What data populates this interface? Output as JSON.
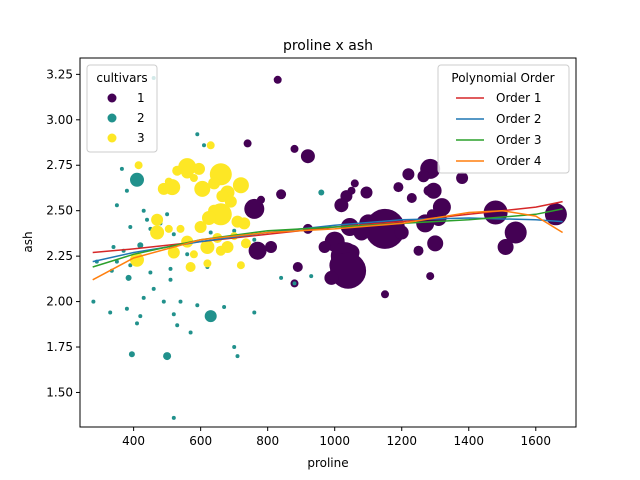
{
  "chart_data": {
    "type": "scatter",
    "title": "proline x ash",
    "xlabel": "proline",
    "ylabel": "ash",
    "xlim": [
      240,
      1720
    ],
    "ylim": [
      1.31,
      3.34
    ],
    "xticks": [
      400,
      600,
      800,
      1000,
      1200,
      1400,
      1600
    ],
    "yticks": [
      1.5,
      1.75,
      2.0,
      2.25,
      2.5,
      2.75,
      3.0,
      3.25
    ],
    "ytick_labels": [
      "1.50",
      "1.75",
      "2.00",
      "2.25",
      "2.50",
      "2.75",
      "3.00",
      "3.25"
    ],
    "grid": false,
    "legends": [
      {
        "title": "cultivars",
        "placement": "top-left",
        "entries": [
          {
            "label": "1",
            "color": "#440154"
          },
          {
            "label": "2",
            "color": "#21918c"
          },
          {
            "label": "3",
            "color": "#fde725"
          }
        ]
      },
      {
        "title": "Polynomial Order",
        "placement": "top-right",
        "entries": [
          {
            "label": "Order 1",
            "color": "#d62728"
          },
          {
            "label": "Order 2",
            "color": "#1f77b4"
          },
          {
            "label": "Order 3",
            "color": "#2ca02c"
          },
          {
            "label": "Order 4",
            "color": "#ff7f0e"
          }
        ]
      }
    ],
    "scatter": [
      {
        "cultivar": "1",
        "color": "#440154",
        "points": [
          [
            830,
            3.22
          ],
          [
            740,
            2.87
          ],
          [
            880,
            2.84
          ],
          [
            920,
            2.8
          ],
          [
            1285,
            2.73
          ],
          [
            1265,
            2.69
          ],
          [
            1220,
            2.7
          ],
          [
            1380,
            2.68
          ],
          [
            1060,
            2.65
          ],
          [
            1050,
            2.61
          ],
          [
            1190,
            2.63
          ],
          [
            1280,
            2.61
          ],
          [
            1295,
            2.61
          ],
          [
            1095,
            2.6
          ],
          [
            840,
            2.59
          ],
          [
            1035,
            2.58
          ],
          [
            1230,
            2.57
          ],
          [
            780,
            2.56
          ],
          [
            1020,
            2.53
          ],
          [
            1320,
            2.52
          ],
          [
            760,
            2.51
          ],
          [
            1290,
            2.48
          ],
          [
            1480,
            2.49
          ],
          [
            1660,
            2.48
          ],
          [
            1310,
            2.46
          ],
          [
            1270,
            2.43
          ],
          [
            1100,
            2.43
          ],
          [
            1045,
            2.41
          ],
          [
            1150,
            2.4
          ],
          [
            1540,
            2.38
          ],
          [
            920,
            2.4
          ],
          [
            1080,
            2.38
          ],
          [
            1200,
            2.38
          ],
          [
            1300,
            2.32
          ],
          [
            1000,
            2.33
          ],
          [
            970,
            2.3
          ],
          [
            1510,
            2.3
          ],
          [
            770,
            2.28
          ],
          [
            810,
            2.3
          ],
          [
            1050,
            2.27
          ],
          [
            1250,
            2.28
          ],
          [
            1030,
            2.25
          ],
          [
            1020,
            2.2
          ],
          [
            1040,
            2.17
          ],
          [
            890,
            2.19
          ],
          [
            1285,
            2.14
          ],
          [
            990,
            2.13
          ],
          [
            880,
            2.1
          ],
          [
            1150,
            2.04
          ]
        ],
        "sizes": [
          4,
          4,
          4,
          7,
          10,
          6,
          6,
          6,
          4,
          4,
          5,
          5,
          8,
          6,
          5,
          6,
          5,
          4,
          7,
          9,
          10,
          5,
          12,
          11,
          8,
          9,
          9,
          9,
          20,
          11,
          5,
          8,
          7,
          8,
          10,
          6,
          8,
          9,
          6,
          8,
          5,
          14,
          12,
          18,
          5,
          4,
          7,
          4,
          4
        ]
      },
      {
        "cultivar": "2",
        "color": "#21918c",
        "points": [
          [
            460,
            3.23
          ],
          [
            590,
            2.92
          ],
          [
            610,
            2.86
          ],
          [
            365,
            2.73
          ],
          [
            410,
            2.67
          ],
          [
            380,
            2.61
          ],
          [
            960,
            2.6
          ],
          [
            350,
            2.53
          ],
          [
            430,
            2.5
          ],
          [
            440,
            2.45
          ],
          [
            500,
            2.48
          ],
          [
            480,
            2.43
          ],
          [
            390,
            2.41
          ],
          [
            450,
            2.4
          ],
          [
            700,
            2.39
          ],
          [
            520,
            2.37
          ],
          [
            630,
            2.38
          ],
          [
            340,
            2.3
          ],
          [
            420,
            2.31
          ],
          [
            620,
            2.32
          ],
          [
            760,
            2.34
          ],
          [
            370,
            2.28
          ],
          [
            420,
            2.25
          ],
          [
            560,
            2.26
          ],
          [
            350,
            2.22
          ],
          [
            390,
            2.2
          ],
          [
            510,
            2.18
          ],
          [
            290,
            2.22
          ],
          [
            620,
            2.19
          ],
          [
            335,
            2.17
          ],
          [
            385,
            2.13
          ],
          [
            450,
            2.16
          ],
          [
            930,
            2.14
          ],
          [
            840,
            2.13
          ],
          [
            880,
            2.1
          ],
          [
            510,
            2.12
          ],
          [
            460,
            2.07
          ],
          [
            280,
            2.0
          ],
          [
            430,
            2.02
          ],
          [
            490,
            2.0
          ],
          [
            540,
            2.0
          ],
          [
            590,
            1.98
          ],
          [
            670,
            1.97
          ],
          [
            330,
            1.94
          ],
          [
            380,
            1.96
          ],
          [
            420,
            1.92
          ],
          [
            520,
            1.93
          ],
          [
            630,
            1.92
          ],
          [
            760,
            1.94
          ],
          [
            410,
            1.88
          ],
          [
            530,
            1.87
          ],
          [
            570,
            1.83
          ],
          [
            700,
            1.75
          ],
          [
            710,
            1.7
          ],
          [
            395,
            1.71
          ],
          [
            500,
            1.7
          ],
          [
            520,
            1.36
          ]
        ],
        "sizes": [
          2,
          2,
          2,
          2,
          7,
          2,
          3,
          2,
          2,
          2,
          2,
          2,
          2,
          2,
          2,
          2,
          2,
          2,
          3,
          3,
          2,
          2,
          2,
          2,
          2,
          2,
          2,
          2,
          2,
          2,
          3,
          2,
          2,
          2,
          2,
          2,
          2,
          2,
          2,
          2,
          2,
          2,
          2,
          2,
          2,
          2,
          2,
          6,
          2,
          2,
          2,
          2,
          2,
          2,
          3,
          4,
          2
        ]
      },
      {
        "cultivar": "3",
        "color": "#fde725",
        "points": [
          [
            630,
            2.86
          ],
          [
            415,
            2.75
          ],
          [
            560,
            2.74
          ],
          [
            530,
            2.72
          ],
          [
            560,
            2.71
          ],
          [
            595,
            2.73
          ],
          [
            660,
            2.7
          ],
          [
            505,
            2.66
          ],
          [
            580,
            2.68
          ],
          [
            515,
            2.63
          ],
          [
            640,
            2.65
          ],
          [
            490,
            2.62
          ],
          [
            720,
            2.64
          ],
          [
            605,
            2.62
          ],
          [
            680,
            2.6
          ],
          [
            665,
            2.58
          ],
          [
            690,
            2.55
          ],
          [
            640,
            2.5
          ],
          [
            660,
            2.48
          ],
          [
            625,
            2.46
          ],
          [
            470,
            2.45
          ],
          [
            710,
            2.44
          ],
          [
            505,
            2.4
          ],
          [
            540,
            2.4
          ],
          [
            730,
            2.43
          ],
          [
            600,
            2.41
          ],
          [
            470,
            2.38
          ],
          [
            700,
            2.36
          ],
          [
            650,
            2.35
          ],
          [
            560,
            2.33
          ],
          [
            735,
            2.32
          ],
          [
            680,
            2.3
          ],
          [
            620,
            2.3
          ],
          [
            660,
            2.28
          ],
          [
            520,
            2.27
          ],
          [
            580,
            2.26
          ],
          [
            410,
            2.23
          ],
          [
            720,
            2.2
          ],
          [
            620,
            2.21
          ],
          [
            570,
            2.19
          ]
        ],
        "sizes": [
          4,
          4,
          9,
          5,
          6,
          6,
          11,
          4,
          4,
          8,
          6,
          6,
          8,
          8,
          7,
          6,
          6,
          6,
          11,
          7,
          6,
          6,
          4,
          4,
          6,
          6,
          7,
          4,
          5,
          6,
          5,
          6,
          7,
          5,
          6,
          4,
          7,
          4,
          4,
          5
        ]
      }
    ],
    "series": [
      {
        "name": "Order 1",
        "color": "#d62728",
        "x": [
          278,
          400,
          600,
          800,
          1000,
          1200,
          1400,
          1600,
          1680
        ],
        "y": [
          2.27,
          2.29,
          2.33,
          2.37,
          2.41,
          2.44,
          2.48,
          2.52,
          2.55
        ]
      },
      {
        "name": "Order 2",
        "color": "#1f77b4",
        "x": [
          278,
          400,
          600,
          800,
          1000,
          1200,
          1400,
          1600,
          1680
        ],
        "y": [
          2.22,
          2.27,
          2.33,
          2.38,
          2.42,
          2.45,
          2.46,
          2.45,
          2.44
        ]
      },
      {
        "name": "Order 3",
        "color": "#2ca02c",
        "x": [
          278,
          400,
          600,
          800,
          1000,
          1200,
          1400,
          1600,
          1680
        ],
        "y": [
          2.19,
          2.26,
          2.34,
          2.39,
          2.41,
          2.43,
          2.45,
          2.48,
          2.51
        ]
      },
      {
        "name": "Order 4",
        "color": "#ff7f0e",
        "x": [
          278,
          400,
          600,
          800,
          1000,
          1200,
          1400,
          1500,
          1600,
          1680
        ],
        "y": [
          2.12,
          2.24,
          2.34,
          2.38,
          2.4,
          2.43,
          2.49,
          2.5,
          2.47,
          2.38
        ]
      }
    ]
  }
}
